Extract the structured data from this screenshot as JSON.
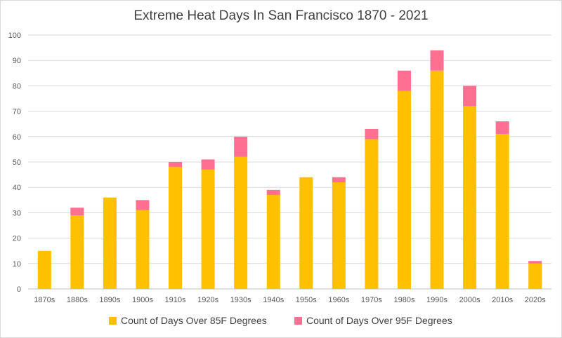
{
  "chart_data": {
    "type": "bar",
    "stacked": true,
    "title": "Extreme Heat Days In San Francisco 1870 - 2021",
    "xlabel": "",
    "ylabel": "",
    "ylim": [
      0,
      100
    ],
    "yticks": [
      0,
      10,
      20,
      30,
      40,
      50,
      60,
      70,
      80,
      90,
      100
    ],
    "grid": true,
    "legend_position": "bottom",
    "categories": [
      "1870s",
      "1880s",
      "1890s",
      "1900s",
      "1910s",
      "1920s",
      "1930s",
      "1940s",
      "1950s",
      "1960s",
      "1970s",
      "1980s",
      "1990s",
      "2000s",
      "2010s",
      "2020s"
    ],
    "series": [
      {
        "name": "Count of Days Over 85F Degrees",
        "color": "#FFC000",
        "values": [
          15,
          29,
          36,
          31,
          48,
          47,
          52,
          37,
          44,
          42,
          59,
          78,
          86,
          72,
          61,
          10
        ]
      },
      {
        "name": "Count of Days Over 95F Degrees",
        "color": "#FF6F91",
        "values": [
          0,
          3,
          0,
          4,
          2,
          4,
          8,
          2,
          0,
          2,
          4,
          8,
          8,
          8,
          5,
          1
        ]
      }
    ]
  }
}
